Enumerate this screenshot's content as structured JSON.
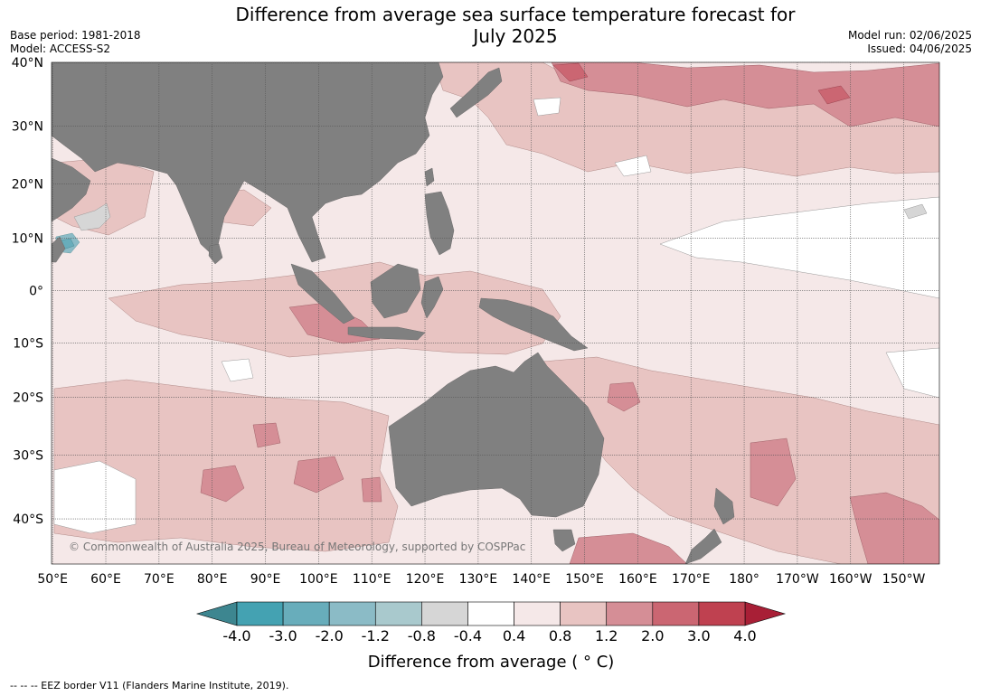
{
  "header": {
    "title_line1": "Difference from average sea surface temperature forecast for",
    "title_line2": "July 2025",
    "base_period": "Base period: 1981-2018",
    "model": "Model: ACCESS-S2",
    "model_run": "Model run: 02/06/2025",
    "issued": "Issued: 04/06/2025"
  },
  "map": {
    "credit": "© Commonwealth of Australia 2025, Bureau of Meteorology, supported by COSPPac",
    "lat_labels": [
      "40°N",
      "30°N",
      "20°N",
      "10°N",
      "0°",
      "10°S",
      "20°S",
      "30°S",
      "40°S"
    ],
    "lat_values": [
      40,
      30,
      20,
      10,
      0,
      -10,
      -20,
      -30,
      -40
    ],
    "lon_labels": [
      "50°E",
      "60°E",
      "70°E",
      "80°E",
      "90°E",
      "100°E",
      "110°E",
      "120°E",
      "130°E",
      "140°E",
      "150°E",
      "160°E",
      "170°E",
      "180°",
      "170°W",
      "160°W",
      "150°W"
    ],
    "lon_values": [
      50,
      60,
      70,
      80,
      90,
      100,
      110,
      120,
      130,
      140,
      150,
      160,
      170,
      180,
      190,
      200,
      210
    ],
    "colors": {
      "land": "#808080",
      "background_anomaly": "#f5e8e8",
      "gridline": "#555555"
    }
  },
  "colorbar": {
    "title": "Difference from average ( ° C)",
    "tick_labels": [
      "-4.0",
      "-3.0",
      "-2.0",
      "-1.2",
      "-0.8",
      "-0.4",
      "0.4",
      "0.8",
      "1.2",
      "2.0",
      "3.0",
      "4.0"
    ],
    "colors": [
      "#44a2b2",
      "#68adbb",
      "#8bbbc6",
      "#a9c9cd",
      "#d6d6d6",
      "#ffffff",
      "#f5e8e8",
      "#e8c4c2",
      "#d58e96",
      "#cb6672",
      "#bf4150"
    ],
    "extend_low_color": "#3d8690",
    "extend_high_color": "#a81f36"
  },
  "footnote": "--  --  -- EEZ border V11 (Flanders Marine Institute, 2019)."
}
